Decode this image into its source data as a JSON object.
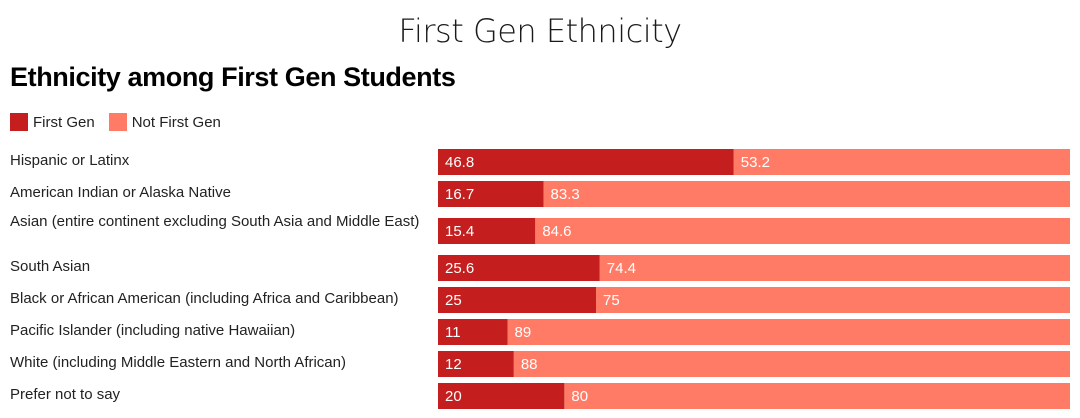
{
  "page": {
    "title": "First Gen Ethnicity"
  },
  "chart_data": {
    "type": "bar",
    "orientation": "horizontal",
    "stacked": true,
    "title": "Ethnicity among First Gen Students",
    "xlabel": "",
    "ylabel": "",
    "xlim": [
      0,
      100
    ],
    "grid": false,
    "legend_position": "top-left",
    "categories": [
      "Hispanic or Latinx",
      "American Indian or Alaska Native",
      "Asian (entire continent excluding South Asia and Middle East)",
      "South Asian",
      "Black or African American (including Africa and Caribbean)",
      "Pacific Islander (including native Hawaiian)",
      "White (including Middle Eastern and North African)",
      "Prefer not to say"
    ],
    "series": [
      {
        "name": "First Gen",
        "color": "#c41e1e",
        "values": [
          46.8,
          16.7,
          15.4,
          25.6,
          25,
          11,
          12,
          20
        ]
      },
      {
        "name": "Not First Gen",
        "color": "#ff7b65",
        "values": [
          53.2,
          83.3,
          84.6,
          74.4,
          75,
          89,
          88,
          80
        ]
      }
    ]
  }
}
